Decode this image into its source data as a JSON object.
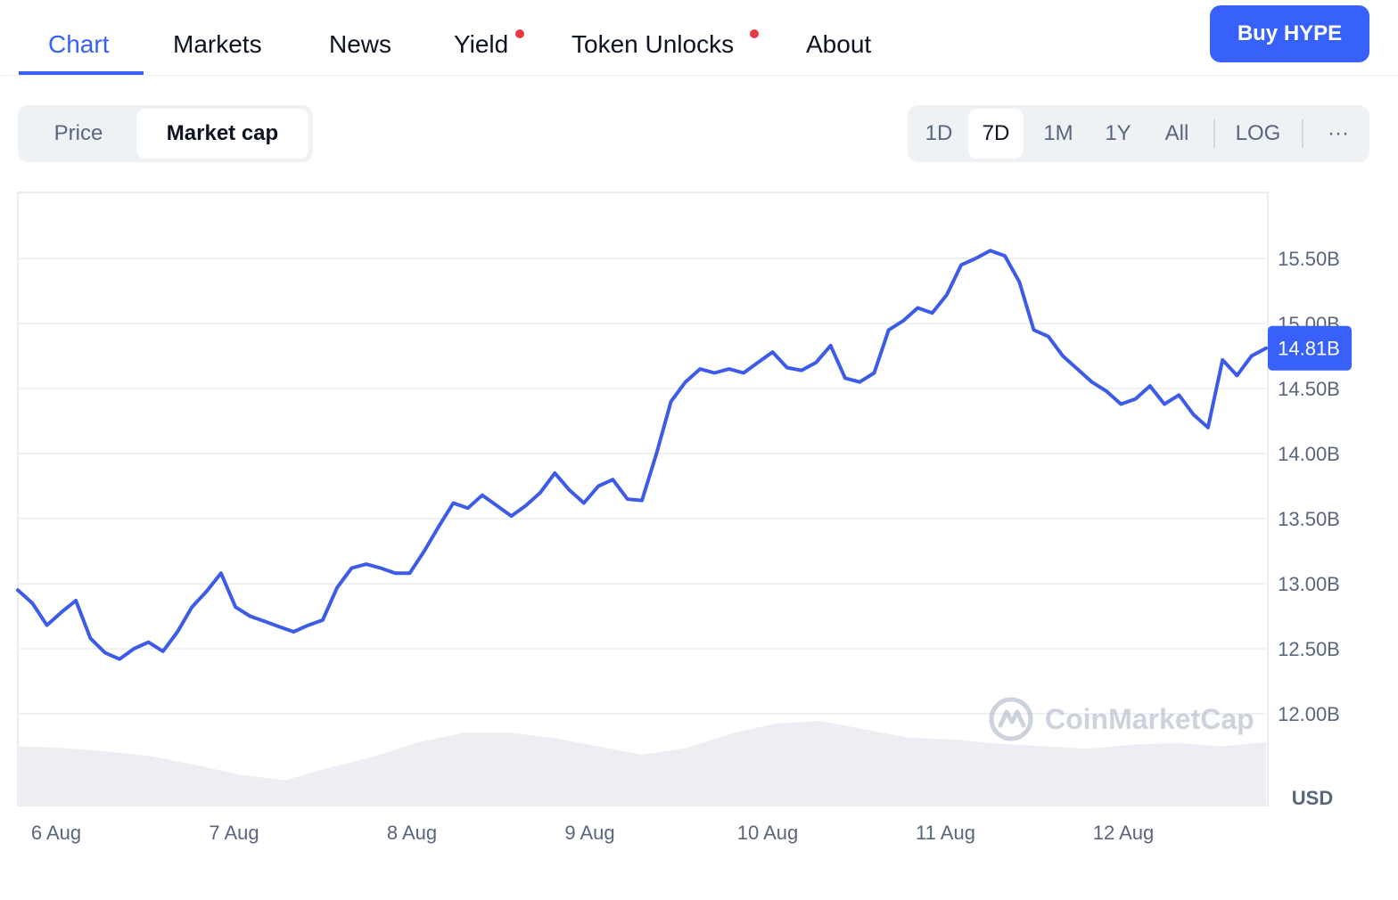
{
  "nav": {
    "tabs": [
      {
        "label": "Chart",
        "active": true
      },
      {
        "label": "Markets"
      },
      {
        "label": "News"
      },
      {
        "label": "Yield",
        "badge": true
      },
      {
        "label": "Token Unlocks",
        "badge": true
      },
      {
        "label": "About"
      }
    ],
    "buy_label": "Buy HYPE"
  },
  "toggle": {
    "options": [
      "Price",
      "Market cap"
    ],
    "selected": "Market cap"
  },
  "ranges": {
    "options": [
      "1D",
      "7D",
      "1M",
      "1Y",
      "All"
    ],
    "selected": "7D",
    "log_label": "LOG",
    "more_label": "···"
  },
  "watermark": "CoinMarketCap",
  "colors": {
    "accent": "#3861fb",
    "line": "#3d5be9",
    "badge": "#ea3943",
    "volume": "#eceef3"
  },
  "chart_data": {
    "type": "line",
    "y_unit": "USD",
    "y_ticks": [
      "12.00B",
      "12.50B",
      "13.00B",
      "13.50B",
      "14.00B",
      "14.50B",
      "15.00B",
      "15.50B"
    ],
    "ylim": [
      11.5,
      16.0
    ],
    "x_ticks": [
      "6 Aug",
      "7 Aug",
      "8 Aug",
      "9 Aug",
      "10 Aug",
      "11 Aug",
      "12 Aug"
    ],
    "current_value": 14.81,
    "current_label": "14.81B",
    "series": [
      {
        "values": [
          12.95,
          12.85,
          12.68,
          12.78,
          12.87,
          12.58,
          12.47,
          12.42,
          12.5,
          12.55,
          12.48,
          12.63,
          12.82,
          12.94,
          13.08,
          12.82,
          12.75,
          12.71,
          12.67,
          12.63,
          12.68,
          12.72,
          12.97,
          13.12,
          13.15,
          13.12,
          13.08,
          13.08,
          13.25,
          13.44,
          13.62,
          13.58,
          13.68,
          13.6,
          13.52,
          13.6,
          13.7,
          13.85,
          13.72,
          13.62,
          13.75,
          13.8,
          13.65,
          13.64,
          14.0,
          14.4,
          14.55,
          14.65,
          14.62,
          14.65,
          14.62,
          14.7,
          14.78,
          14.66,
          14.64,
          14.7,
          14.83,
          14.58,
          14.55,
          14.62,
          14.95,
          15.02,
          15.12,
          15.08,
          15.22,
          15.45,
          15.5,
          15.56,
          15.52,
          15.32,
          14.95,
          14.9,
          14.75,
          14.65,
          14.55,
          14.48,
          14.38,
          14.42,
          14.52,
          14.38,
          14.45,
          14.3,
          14.2,
          14.72,
          14.6,
          14.75,
          14.81
        ]
      }
    ],
    "volume": [
      0.7,
      0.68,
      0.64,
      0.58,
      0.48,
      0.36,
      0.3,
      0.45,
      0.58,
      0.75,
      0.86,
      0.86,
      0.8,
      0.7,
      0.6,
      0.68,
      0.85,
      0.97,
      1.0,
      0.9,
      0.8,
      0.78,
      0.73,
      0.7,
      0.67,
      0.72,
      0.74,
      0.7,
      0.75
    ]
  }
}
